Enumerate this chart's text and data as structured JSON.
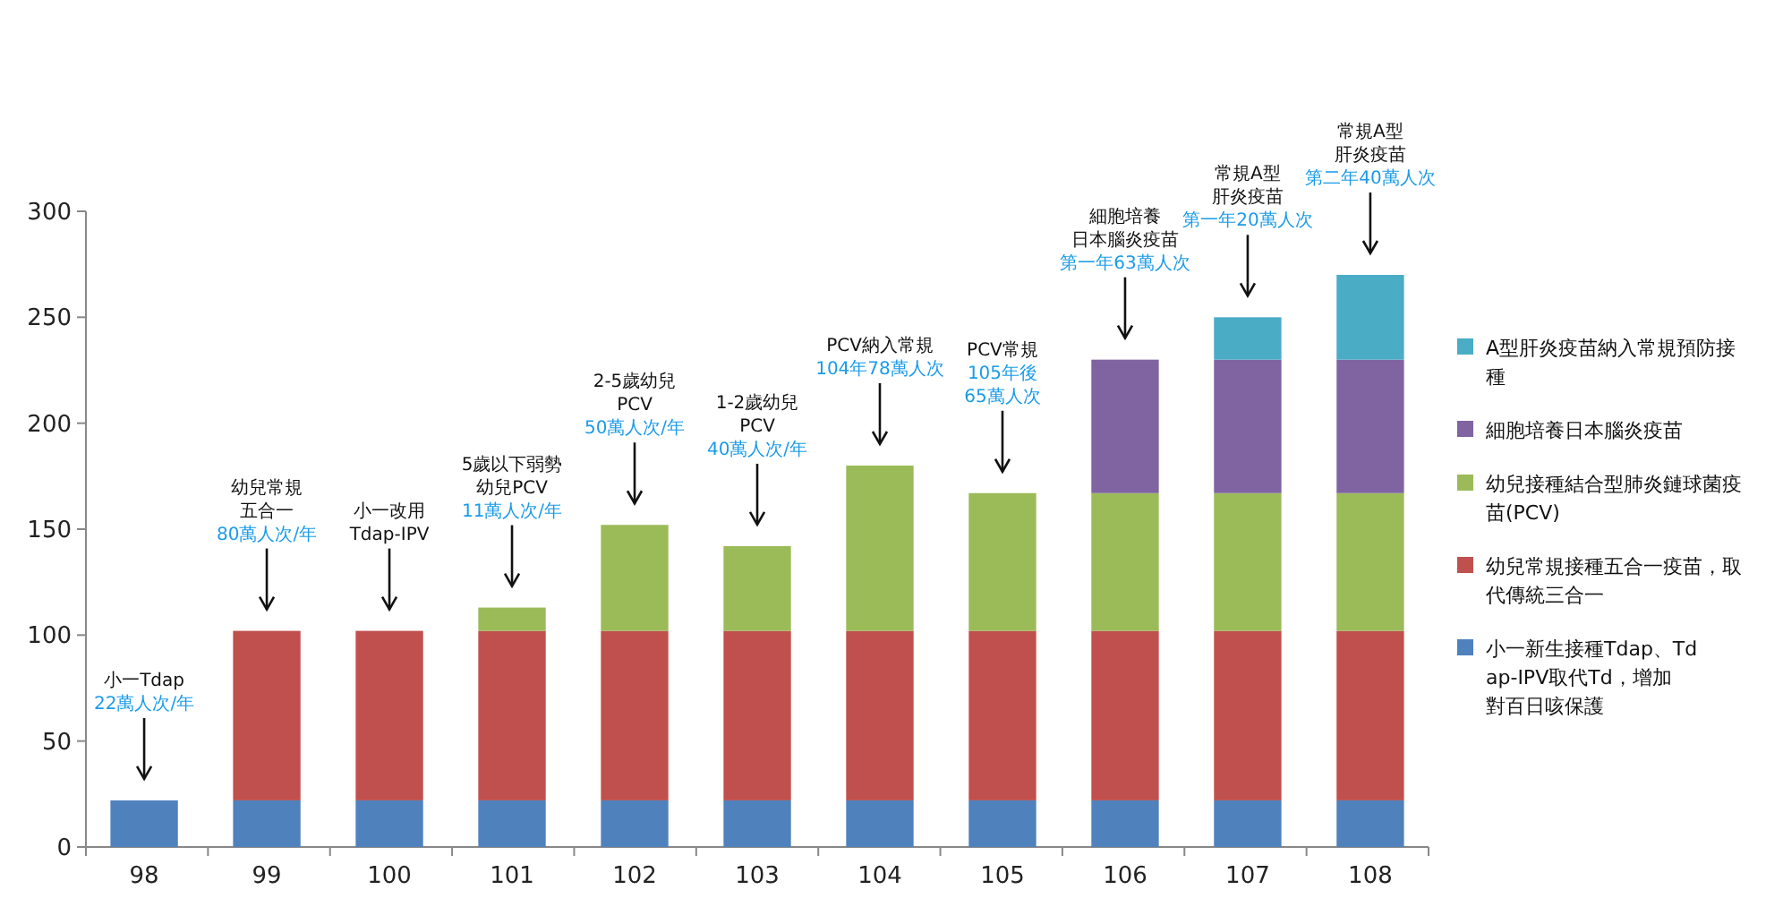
{
  "chart_data": {
    "type": "bar",
    "stacked": true,
    "categories": [
      "98",
      "99",
      "100",
      "101",
      "102",
      "103",
      "104",
      "105",
      "106",
      "107",
      "108"
    ],
    "series": [
      {
        "name": "小一新生接種Tdap、Tdap-IPV取代Td，增加對百日咳保護",
        "color": "#4f81bd",
        "values": [
          22,
          22,
          22,
          22,
          22,
          22,
          22,
          22,
          22,
          22,
          22
        ]
      },
      {
        "name": "幼兒常規接種五合一疫苗，取代傳統三合一",
        "color": "#c0504d",
        "values": [
          null,
          80,
          80,
          80,
          80,
          80,
          80,
          80,
          80,
          80,
          80
        ]
      },
      {
        "name": "幼兒接種結合型肺炎鏈球菌疫苗(PCV)",
        "color": "#9bbb59",
        "values": [
          null,
          null,
          null,
          11,
          50,
          40,
          78,
          65,
          65,
          65,
          65
        ]
      },
      {
        "name": "細胞培養日本腦炎疫苗",
        "color": "#8064a2",
        "values": [
          null,
          null,
          null,
          null,
          null,
          null,
          null,
          null,
          63,
          63,
          63
        ]
      },
      {
        "name": "A型肝炎疫苗納入常規預防接種",
        "color": "#4bacc6",
        "values": [
          null,
          null,
          null,
          null,
          null,
          null,
          null,
          null,
          null,
          20,
          40
        ]
      }
    ],
    "ylim": [
      0,
      300
    ],
    "yticks": [
      0,
      50,
      100,
      150,
      200,
      250,
      300
    ],
    "legend": "right",
    "annotations": [
      "小一Tdap",
      "22萬人次/年",
      "幼兒常規五合一",
      "80萬人次/年",
      "小一改用Tdap-IPV",
      "5歲以下弱勢幼兒PCV",
      "11萬人次/年",
      "2-5歲幼兒PCV",
      "50萬人次/年",
      "1-2歲幼兒PCV",
      "40萬人次/年",
      "PCV納入常規",
      "104年78萬人次",
      "PCV常規",
      "105年後65萬人次",
      "細胞培養日本腦炎疫苗",
      "第一年63萬人次",
      "常規A型肝炎疫苗",
      "第一年20萬人次",
      "常規A型肝炎疫苗",
      "第二年40萬人次"
    ]
  }
}
